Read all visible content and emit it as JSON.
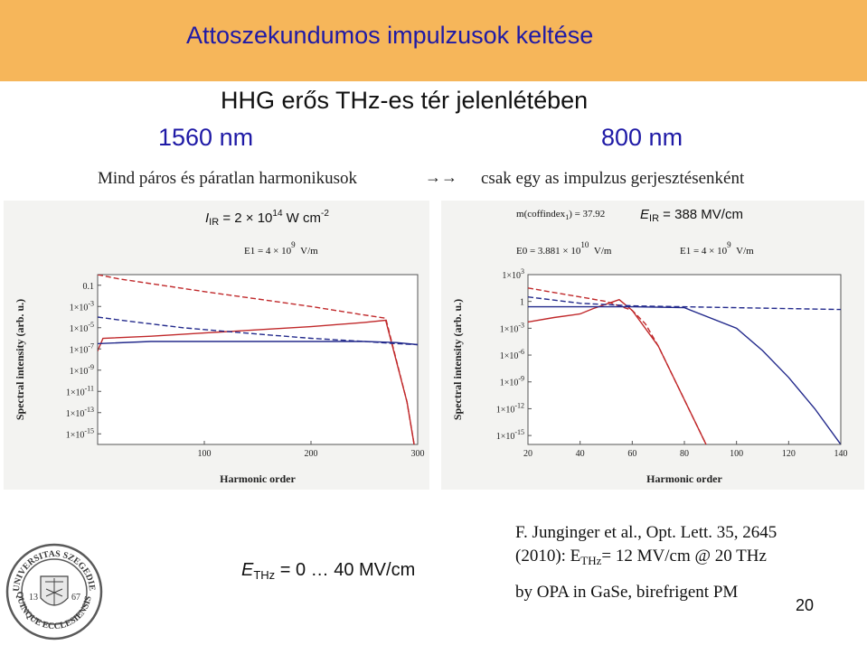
{
  "slide": {
    "title": "Attoszekundumos impulzusok keltése",
    "subtitle": "HHG erős THz-es tér jelenlétében",
    "wavelength_left": "1560 nm",
    "wavelength_right": "800 nm",
    "harmonics_left": "Mind páros és páratlan harmonikusok",
    "harmonics_arrow": "→→",
    "harmonics_right": "csak egy as impulzus gerjesztésenként",
    "intensity_label": {
      "sym": "I",
      "sub": "IR",
      "rest": " = 2 × 10",
      "exp": "14",
      "unit": " W cm",
      "unit_exp": "-2"
    },
    "field_label": {
      "sym": "E",
      "sub": "IR",
      "rest": " = 388 MV/cm"
    },
    "left_e1": {
      "a": "E1 = 4 × 10",
      "exp": "9",
      "unit": "V/m"
    },
    "right_m": {
      "a": "m",
      "b": "(coffindex",
      "sub": "1",
      "c": ") = 37.92"
    },
    "right_e0": {
      "a": "E0 = 3.881 × 10",
      "exp": "10",
      "unit": "V/m"
    },
    "right_e1": {
      "a": "E1 = 4 × 10",
      "exp": "9",
      "unit": "V/m"
    },
    "thz_label": {
      "sym": "E",
      "sub": "THz",
      "rest": " = 0 … 40 MV/cm"
    },
    "ref_line1": "F. Junginger et al., Opt. Lett. 35, 2645",
    "ref_line2_a": "(2010): E",
    "ref_line2_sub": "THz",
    "ref_line2_b": "= 12 MV/cm @ 20 THz",
    "ref_line3": "by OPA in GaSe, birefrigent PM",
    "page_number": "20",
    "seal_text": "UNIVERSITAS SZEGEDIENSIS",
    "seal_years": [
      "13",
      "67"
    ]
  },
  "chart_data": [
    {
      "type": "line",
      "ylabel": "Spectral intensity (arb. u.)",
      "xlabel": "Harmonic order",
      "xlim": [
        0,
        300
      ],
      "x_ticks": [
        "100",
        "200",
        "300"
      ],
      "y_ticks": [
        "0.1",
        "1×10^-3",
        "1×10^-5",
        "1×10^-7",
        "1×10^-9",
        "1×10^-11",
        "1×10^-13",
        "1×10^-15"
      ],
      "y_log": true,
      "ylim_exp": [
        -16,
        0
      ],
      "series": [
        {
          "color": "#c0282a",
          "style": "solid",
          "x": [
            0,
            5,
            50,
            100,
            150,
            200,
            250,
            270,
            290,
            300
          ],
          "logy": [
            -7.2,
            -6.0,
            -5.8,
            -5.5,
            -5.2,
            -4.9,
            -4.5,
            -4.3,
            -12.0,
            -18.0
          ]
        },
        {
          "color": "#c0282a",
          "style": "dashed",
          "x": [
            0,
            20,
            100,
            150,
            200,
            250,
            270,
            290,
            300
          ],
          "logy": [
            0.0,
            -0.4,
            -1.6,
            -2.3,
            -3.0,
            -3.8,
            -4.1,
            -12,
            -18
          ]
        },
        {
          "color": "#232a8c",
          "style": "solid",
          "x": [
            0,
            50,
            100,
            150,
            200,
            250,
            280,
            300
          ],
          "logy": [
            -6.5,
            -6.3,
            -6.3,
            -6.3,
            -6.3,
            -6.3,
            -6.4,
            -6.6
          ]
        },
        {
          "color": "#232a8c",
          "style": "dashed",
          "x": [
            0,
            30,
            80,
            150,
            200,
            250,
            280,
            300
          ],
          "logy": [
            -4.0,
            -4.4,
            -5.0,
            -5.6,
            -6.0,
            -6.3,
            -6.5,
            -6.6
          ]
        }
      ]
    },
    {
      "type": "line",
      "ylabel": "Spectral intensity (arb. u.)",
      "xlabel": "Harmonic order",
      "xlim": [
        20,
        140
      ],
      "x_ticks": [
        "20",
        "40",
        "60",
        "80",
        "100",
        "120",
        "140"
      ],
      "y_ticks": [
        "1×10^3",
        "1",
        "1×10^-3",
        "1×10^-6",
        "1×10^-9",
        "1×10^-12",
        "1×10^-15"
      ],
      "y_log": true,
      "ylim_exp": [
        -16,
        3
      ],
      "series": [
        {
          "color": "#c0282a",
          "style": "dashed",
          "x": [
            20,
            30,
            40,
            50,
            55,
            60,
            65,
            70,
            80,
            90
          ],
          "logy": [
            1.5,
            1.0,
            0.5,
            0.0,
            -0.5,
            -1.0,
            -2.5,
            -5.0,
            -11.0,
            -17.0
          ]
        },
        {
          "color": "#c0282a",
          "style": "solid",
          "x": [
            20,
            30,
            40,
            45,
            50,
            55,
            60,
            70,
            80,
            90
          ],
          "logy": [
            -2.3,
            -1.8,
            -1.4,
            -0.8,
            -0.3,
            0.2,
            -1.0,
            -5.0,
            -11.0,
            -17.0
          ]
        },
        {
          "color": "#232a8c",
          "style": "dashed",
          "x": [
            20,
            40,
            60,
            80,
            100,
            120,
            140
          ],
          "logy": [
            0.5,
            -0.2,
            -0.5,
            -0.6,
            -0.7,
            -0.8,
            -0.9
          ]
        },
        {
          "color": "#232a8c",
          "style": "solid",
          "x": [
            20,
            40,
            60,
            80,
            100,
            110,
            120,
            130,
            140
          ],
          "logy": [
            -0.6,
            -0.6,
            -0.6,
            -0.7,
            -3.0,
            -5.5,
            -8.5,
            -12.0,
            -16.0
          ]
        }
      ]
    }
  ]
}
